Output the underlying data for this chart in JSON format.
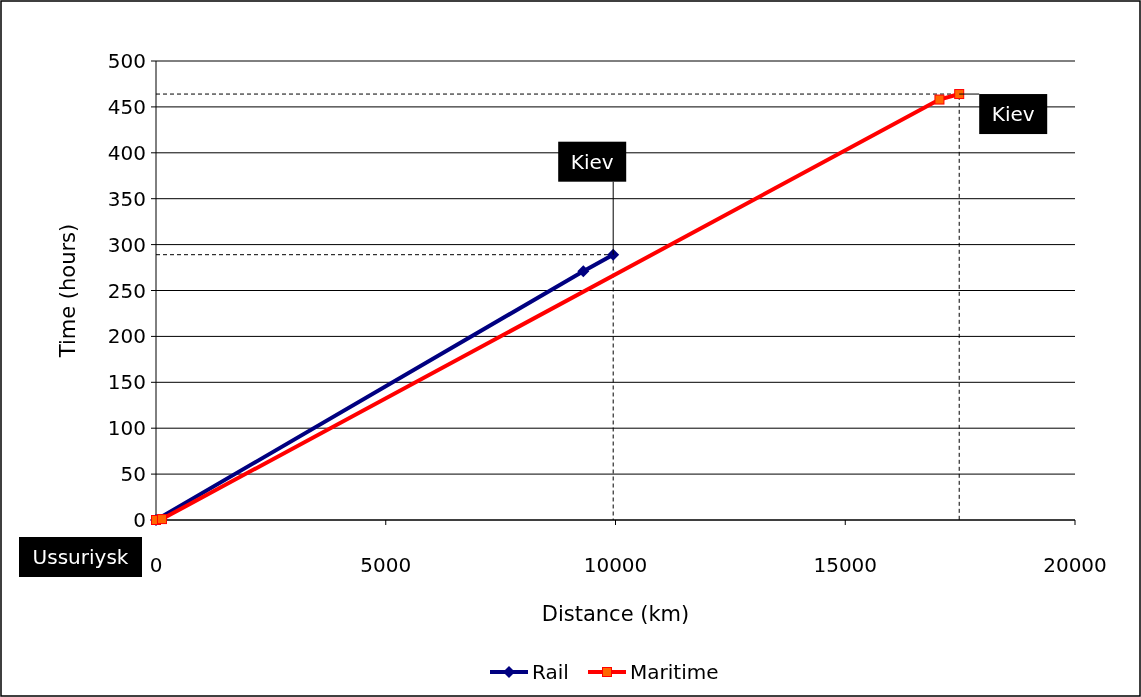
{
  "chart_data": {
    "type": "line",
    "xlabel": "Distance (km)",
    "ylabel": "Time (hours)",
    "xlim": [
      0,
      20000
    ],
    "xticks": [
      0,
      5000,
      10000,
      15000,
      20000
    ],
    "ylim": [
      0,
      500
    ],
    "yticks": [
      0,
      50,
      100,
      150,
      200,
      250,
      300,
      350,
      400,
      450,
      500
    ],
    "grid": "y",
    "legend": "bottom",
    "series": [
      {
        "name": "Rail",
        "color": "#000080",
        "marker": "diamond",
        "x": [
          0,
          9300,
          9950
        ],
        "values": [
          0,
          271,
          289
        ]
      },
      {
        "name": "Maritime",
        "color": "#ff0000",
        "marker": "square",
        "x": [
          0,
          130,
          17050,
          17480
        ],
        "values": [
          0,
          1,
          458,
          464
        ]
      }
    ],
    "annotations": [
      {
        "text": "Ussuriysk",
        "x": 0,
        "y": 0
      },
      {
        "text": "Kiev",
        "x": 9950,
        "y": 289
      },
      {
        "text": "Kiev",
        "x": 17480,
        "y": 464
      }
    ]
  }
}
